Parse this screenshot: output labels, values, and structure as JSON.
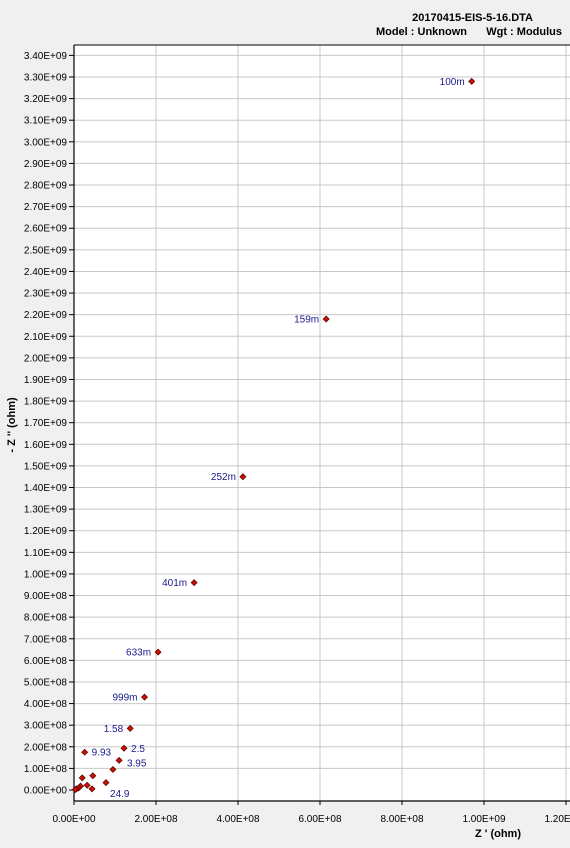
{
  "header": {
    "file": "20170415-EIS-5-16.DTA",
    "model_label": "Model : Unknown",
    "weight_label": "Wgt : Modulus"
  },
  "chart_data": {
    "type": "scatter",
    "xlabel": "Z ' (ohm)",
    "ylabel": "- Z '' (ohm)",
    "xlim": [
      0,
      1200000000.0
    ],
    "ylim": [
      -25000000.0,
      3450000000.0
    ],
    "grid": true,
    "marker_color": "#cc1100",
    "marker_edge": "#550000",
    "label_color": "#1a1a8c",
    "x_ticks": [
      {
        "v": 0,
        "label": "0.00E+00"
      },
      {
        "v": 200000000.0,
        "label": "2.00E+08"
      },
      {
        "v": 400000000.0,
        "label": "4.00E+08"
      },
      {
        "v": 600000000.0,
        "label": "6.00E+08"
      },
      {
        "v": 800000000.0,
        "label": "8.00E+08"
      },
      {
        "v": 1000000000.0,
        "label": "1.00E+09"
      },
      {
        "v": 1200000000.0,
        "label": "1.20E+09"
      }
    ],
    "y_ticks": [
      {
        "v": 0,
        "label": "0.00E+00"
      },
      {
        "v": 100000000.0,
        "label": "1.00E+08"
      },
      {
        "v": 200000000.0,
        "label": "2.00E+08"
      },
      {
        "v": 300000000.0,
        "label": "3.00E+08"
      },
      {
        "v": 400000000.0,
        "label": "4.00E+08"
      },
      {
        "v": 500000000.0,
        "label": "5.00E+08"
      },
      {
        "v": 600000000.0,
        "label": "6.00E+08"
      },
      {
        "v": 700000000.0,
        "label": "7.00E+08"
      },
      {
        "v": 800000000.0,
        "label": "8.00E+08"
      },
      {
        "v": 900000000.0,
        "label": "9.00E+08"
      },
      {
        "v": 1000000000.0,
        "label": "1.00E+09"
      },
      {
        "v": 1100000000.0,
        "label": "1.10E+09"
      },
      {
        "v": 1200000000.0,
        "label": "1.20E+09"
      },
      {
        "v": 1300000000.0,
        "label": "1.30E+09"
      },
      {
        "v": 1400000000.0,
        "label": "1.40E+09"
      },
      {
        "v": 1500000000.0,
        "label": "1.50E+09"
      },
      {
        "v": 1600000000.0,
        "label": "1.60E+09"
      },
      {
        "v": 1700000000.0,
        "label": "1.70E+09"
      },
      {
        "v": 1800000000.0,
        "label": "1.80E+09"
      },
      {
        "v": 1900000000.0,
        "label": "1.90E+09"
      },
      {
        "v": 2000000000.0,
        "label": "2.00E+09"
      },
      {
        "v": 2100000000.0,
        "label": "2.10E+09"
      },
      {
        "v": 2200000000.0,
        "label": "2.20E+09"
      },
      {
        "v": 2300000000.0,
        "label": "2.30E+09"
      },
      {
        "v": 2400000000.0,
        "label": "2.40E+09"
      },
      {
        "v": 2500000000.0,
        "label": "2.50E+09"
      },
      {
        "v": 2600000000.0,
        "label": "2.60E+09"
      },
      {
        "v": 2700000000.0,
        "label": "2.70E+09"
      },
      {
        "v": 2800000000.0,
        "label": "2.80E+09"
      },
      {
        "v": 2900000000.0,
        "label": "2.90E+09"
      },
      {
        "v": 3000000000.0,
        "label": "3.00E+09"
      },
      {
        "v": 3100000000.0,
        "label": "3.10E+09"
      },
      {
        "v": 3200000000.0,
        "label": "3.20E+09"
      },
      {
        "v": 3300000000.0,
        "label": "3.30E+09"
      },
      {
        "v": 3400000000.0,
        "label": "3.40E+09"
      }
    ],
    "points": [
      {
        "x": 970000000.0,
        "y": 3280000000.0,
        "label": "100m",
        "pos": "left"
      },
      {
        "x": 615000000.0,
        "y": 2180000000.0,
        "label": "159m",
        "pos": "left"
      },
      {
        "x": 412000000.0,
        "y": 1450000000.0,
        "label": "252m",
        "pos": "left"
      },
      {
        "x": 293000000.0,
        "y": 960000000.0,
        "label": "401m",
        "pos": "left"
      },
      {
        "x": 205000000.0,
        "y": 638000000.0,
        "label": "633m",
        "pos": "left"
      },
      {
        "x": 172000000.0,
        "y": 430000000.0,
        "label": "999m",
        "pos": "left"
      },
      {
        "x": 137000000.0,
        "y": 285000000.0,
        "label": "1.58",
        "pos": "left"
      },
      {
        "x": 122000000.0,
        "y": 193000000.0,
        "label": "2.5",
        "pos": "right"
      },
      {
        "x": 110000000.0,
        "y": 137000000.0,
        "label": "",
        "pos": "none"
      },
      {
        "x": 95000000.0,
        "y": 95000000.0,
        "label": "3.95",
        "pos": "right-low"
      },
      {
        "x": 26000000.0,
        "y": 175000000.0,
        "label": "9.93",
        "pos": "right"
      },
      {
        "x": 78000000.0,
        "y": 34000000.0,
        "label": "",
        "pos": "none"
      },
      {
        "x": 46000000.0,
        "y": 66000000.0,
        "label": "",
        "pos": "none"
      },
      {
        "x": 20000000.0,
        "y": 56000000.0,
        "label": "",
        "pos": "none"
      },
      {
        "x": 32000000.0,
        "y": 22000000.0,
        "label": "",
        "pos": "none"
      },
      {
        "x": 44000000.0,
        "y": 5000000.0,
        "label": "24.9",
        "pos": "right-below"
      },
      {
        "x": 16000000.0,
        "y": 18000000.0,
        "label": "",
        "pos": "none"
      },
      {
        "x": 11000000.0,
        "y": 9000000.0,
        "label": "",
        "pos": "none"
      },
      {
        "x": 6000000.0,
        "y": 5000000.0,
        "label": "",
        "pos": "none"
      },
      {
        "x": 3000000.0,
        "y": 2000000.0,
        "label": "",
        "pos": "none"
      }
    ]
  }
}
